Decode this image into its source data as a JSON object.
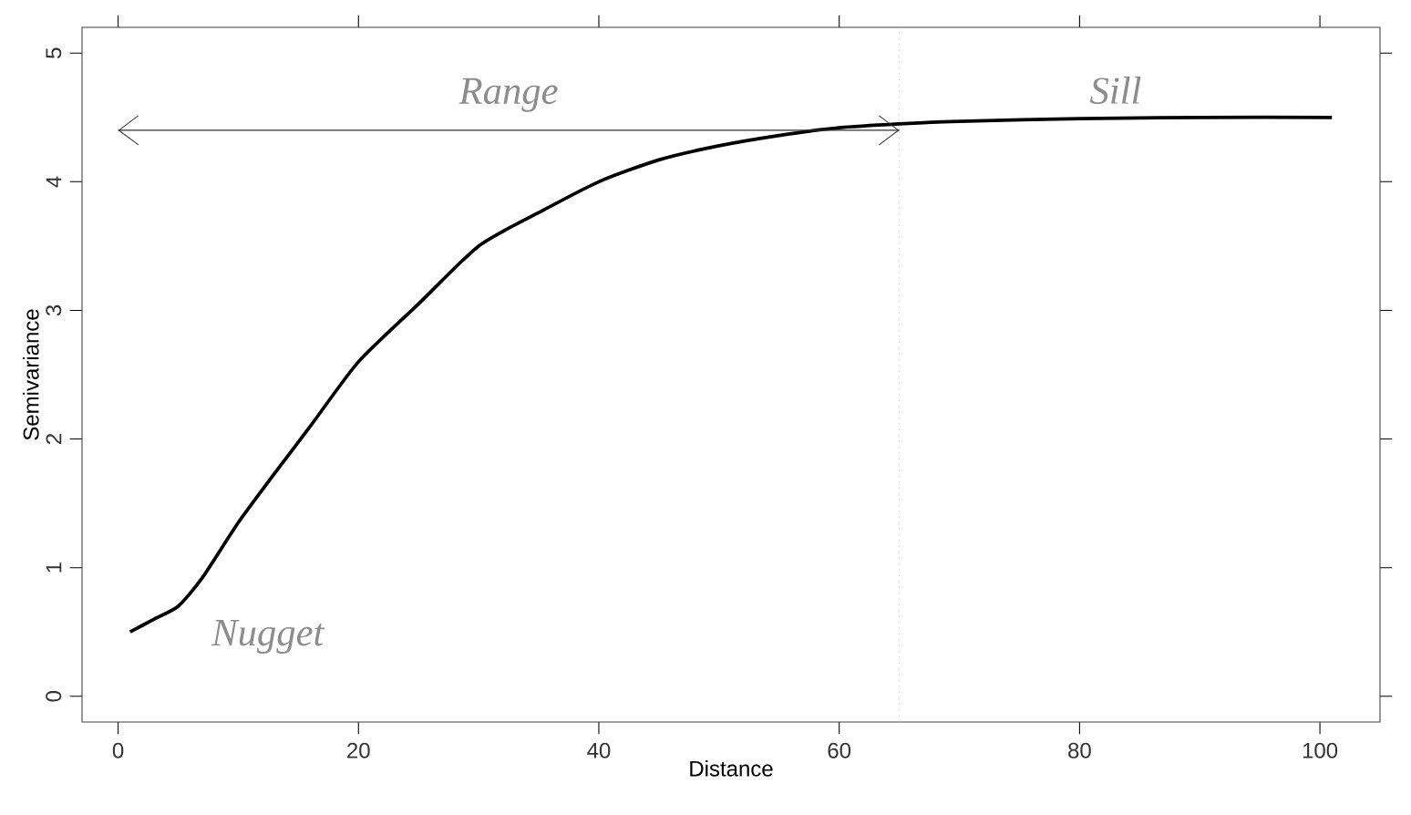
{
  "chart_data": {
    "type": "line",
    "xlabel": "Distance",
    "ylabel": "Semivariance",
    "xlim": [
      -3,
      105
    ],
    "ylim": [
      -0.2,
      5.2
    ],
    "xticks": [
      0,
      20,
      40,
      60,
      80,
      100
    ],
    "yticks": [
      0,
      1,
      2,
      3,
      4,
      5
    ],
    "grid": false,
    "marker": "none",
    "series": [
      {
        "color": "#000000",
        "x": [
          1,
          3,
          5,
          7,
          10,
          13,
          16,
          20,
          25,
          30,
          35,
          40,
          45,
          50,
          55,
          60,
          65,
          70,
          80,
          90,
          101
        ],
        "values": [
          0.5,
          0.6,
          0.7,
          0.92,
          1.35,
          1.73,
          2.1,
          2.6,
          3.05,
          3.5,
          3.76,
          4.0,
          4.17,
          4.28,
          4.36,
          4.42,
          4.45,
          4.47,
          4.49,
          4.5,
          4.5
        ]
      },
      {
        "type": "line",
        "color": "#333333",
        "x": [
          0,
          65
        ],
        "values": [
          4.4,
          4.4
        ]
      }
    ],
    "ref_lines": [
      {
        "axis": "x",
        "value": 65,
        "color": "#c0c0c0",
        "line_style": "dotted"
      }
    ],
    "annotations": [
      "Range",
      "Sill",
      "Nugget"
    ]
  }
}
